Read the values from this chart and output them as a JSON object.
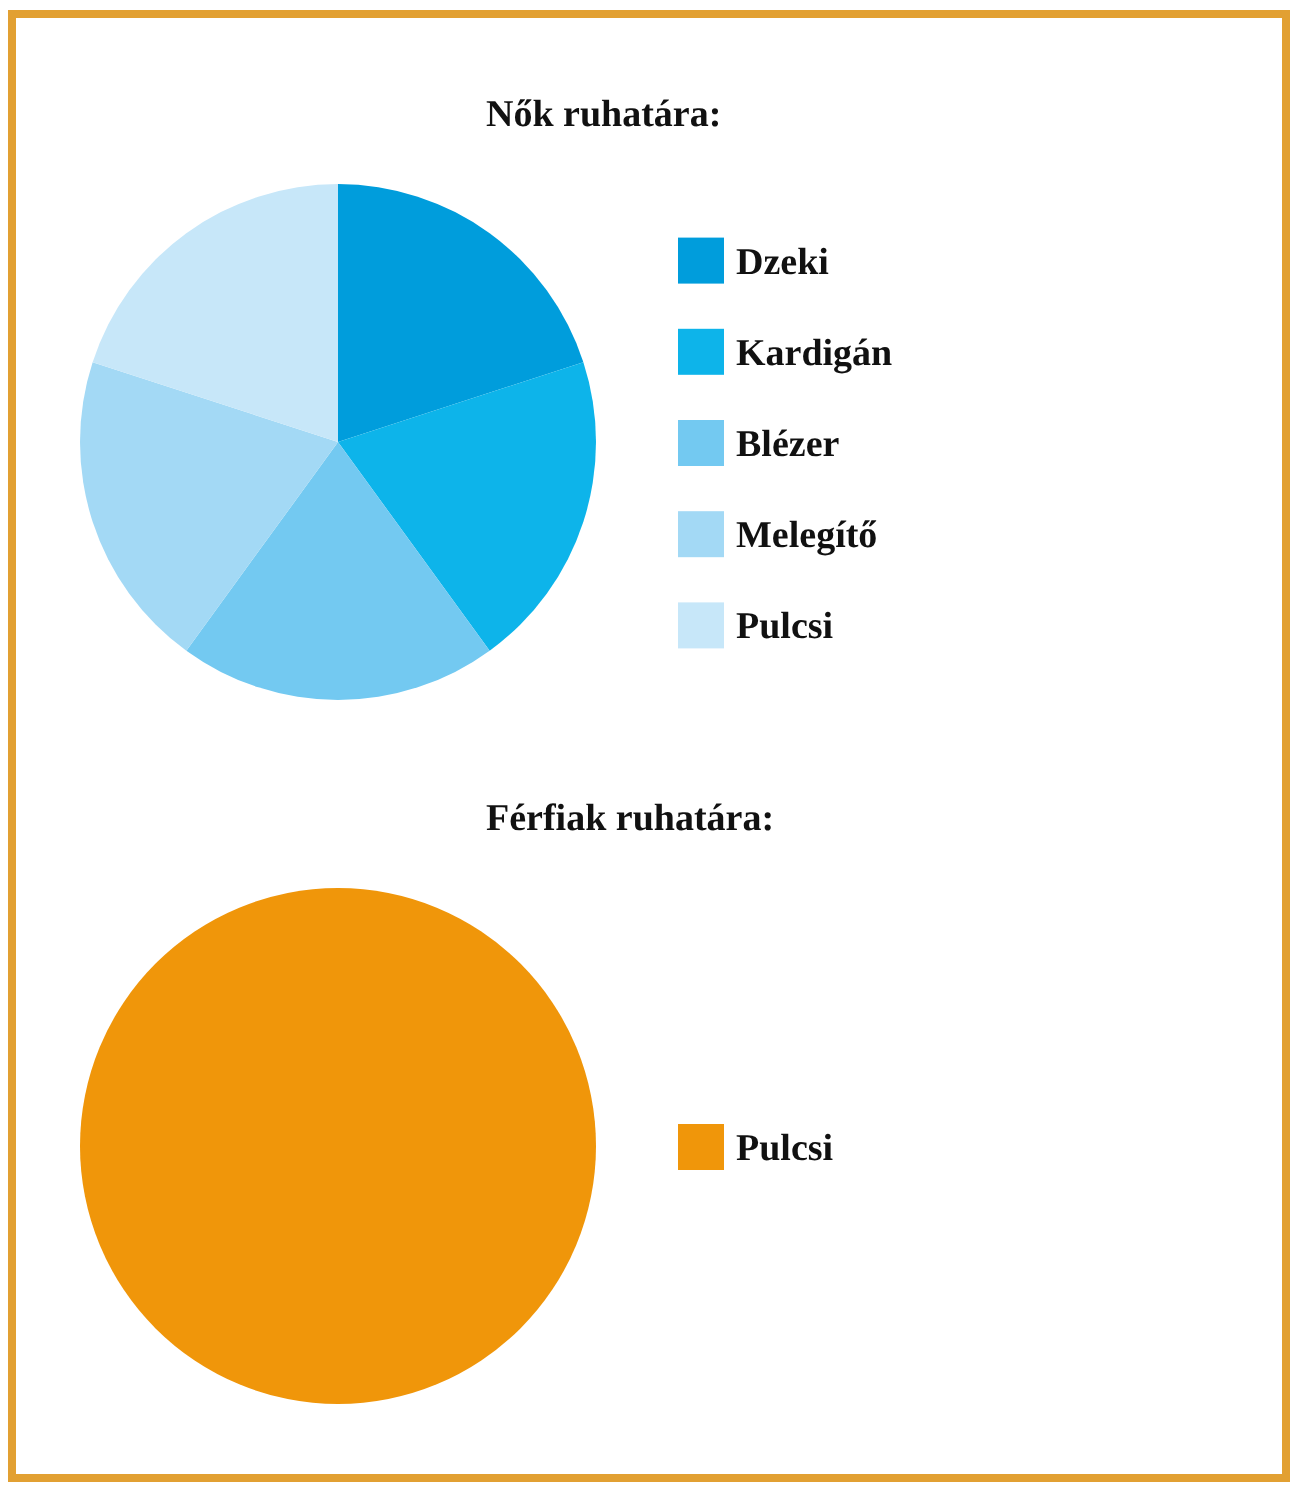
{
  "chart_data": [
    {
      "type": "pie",
      "title": "Nők ruhatára:",
      "categories": [
        "Dzeki",
        "Kardigán",
        "Blézer",
        "Melegítő",
        "Pulcsi"
      ],
      "values": [
        20,
        20,
        20,
        20,
        20
      ],
      "colors": [
        "#009ddc",
        "#0db4ea",
        "#73c9f1",
        "#a3d9f5",
        "#c7e7f9"
      ],
      "legend": "right"
    },
    {
      "type": "pie",
      "title": "Férfiak ruhatára:",
      "categories": [
        "Pulcsi"
      ],
      "values": [
        100
      ],
      "colors": [
        "#f0960a"
      ],
      "legend": "right"
    }
  ]
}
